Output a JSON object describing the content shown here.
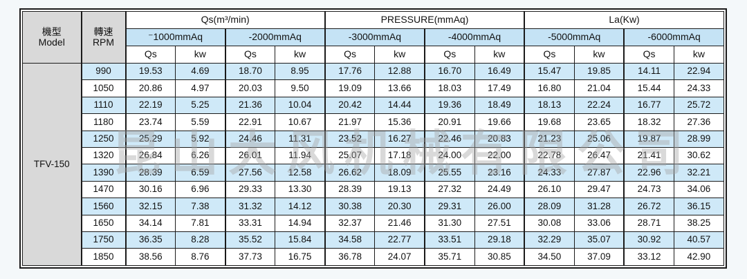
{
  "table": {
    "model_header": {
      "zh": "機型",
      "en": "Model"
    },
    "rpm_header": {
      "zh": "轉速",
      "en": "RPM"
    },
    "group_headers": [
      "Qs(m³/min)",
      "PRESSURE(mmAq)",
      "La(Kw)"
    ],
    "pressure_headers": [
      "⁻1000mmAq",
      "-2000mmAq",
      "-3000mmAq",
      "-4000mmAq",
      "-5000mmAq",
      "-6000mmAq"
    ],
    "sub_headers": {
      "qs": "Qs",
      "kw": "kw"
    },
    "model": "TFV-150",
    "rows": [
      {
        "rpm": "990",
        "values": [
          "19.53",
          "4.69",
          "18.70",
          "8.95",
          "17.76",
          "12.88",
          "16.70",
          "16.49",
          "15.47",
          "19.85",
          "14.11",
          "22.94"
        ]
      },
      {
        "rpm": "1050",
        "values": [
          "20.86",
          "4.97",
          "20.03",
          "9.50",
          "19.09",
          "13.66",
          "18.03",
          "17.49",
          "16.80",
          "21.04",
          "15.44",
          "24.33"
        ]
      },
      {
        "rpm": "1110",
        "values": [
          "22.19",
          "5.25",
          "21.36",
          "10.04",
          "20.42",
          "14.44",
          "19.36",
          "18.49",
          "18.13",
          "22.24",
          "16.77",
          "25.72"
        ]
      },
      {
        "rpm": "1180",
        "values": [
          "23.74",
          "5.59",
          "22.91",
          "10.67",
          "21.97",
          "15.36",
          "20.91",
          "19.66",
          "19.68",
          "23.65",
          "18.32",
          "27.36"
        ]
      },
      {
        "rpm": "1250",
        "values": [
          "25.29",
          "5.92",
          "24.46",
          "11.31",
          "23.52",
          "16.27",
          "22.46",
          "20.83",
          "21.23",
          "25.06",
          "19.87",
          "28.99"
        ]
      },
      {
        "rpm": "1320",
        "values": [
          "26.84",
          "6.26",
          "26.01",
          "11.94",
          "25.07",
          "17.18",
          "24.00",
          "22.00",
          "22.78",
          "26.47",
          "21.41",
          "30.62"
        ]
      },
      {
        "rpm": "1390",
        "values": [
          "28.39",
          "6.59",
          "27.56",
          "12.58",
          "26.62",
          "18.09",
          "25.55",
          "23.16",
          "24.33",
          "27.87",
          "22.96",
          "32.21"
        ]
      },
      {
        "rpm": "1470",
        "values": [
          "30.16",
          "6.96",
          "29.33",
          "13.30",
          "28.39",
          "19.13",
          "27.32",
          "24.49",
          "26.10",
          "29.47",
          "24.73",
          "34.06"
        ]
      },
      {
        "rpm": "1560",
        "values": [
          "32.15",
          "7.38",
          "31.32",
          "14.12",
          "30.38",
          "20.30",
          "29.31",
          "26.00",
          "28.09",
          "31.28",
          "26.72",
          "36.15"
        ]
      },
      {
        "rpm": "1650",
        "values": [
          "34.14",
          "7.81",
          "33.31",
          "14.94",
          "32.37",
          "21.46",
          "31.30",
          "27.51",
          "30.08",
          "33.06",
          "28.71",
          "38.25"
        ]
      },
      {
        "rpm": "1750",
        "values": [
          "36.35",
          "8.28",
          "35.52",
          "15.84",
          "34.58",
          "22.77",
          "33.51",
          "29.18",
          "32.29",
          "35.07",
          "30.92",
          "40.57"
        ]
      },
      {
        "rpm": "1850",
        "values": [
          "38.56",
          "8.76",
          "37.73",
          "16.75",
          "36.78",
          "24.07",
          "35.71",
          "30.85",
          "34.50",
          "37.09",
          "33.12",
          "42.90"
        ]
      }
    ],
    "colors": {
      "stripe_blue": "#cfe9f8",
      "pressure_header_blue": "#c5e3f5",
      "header_gray": "#d9d9d9",
      "border": "#1a1a1a",
      "page_background": "#f4f8fa"
    }
  },
  "watermark": {
    "text": "昆山大风机械有限公司"
  }
}
